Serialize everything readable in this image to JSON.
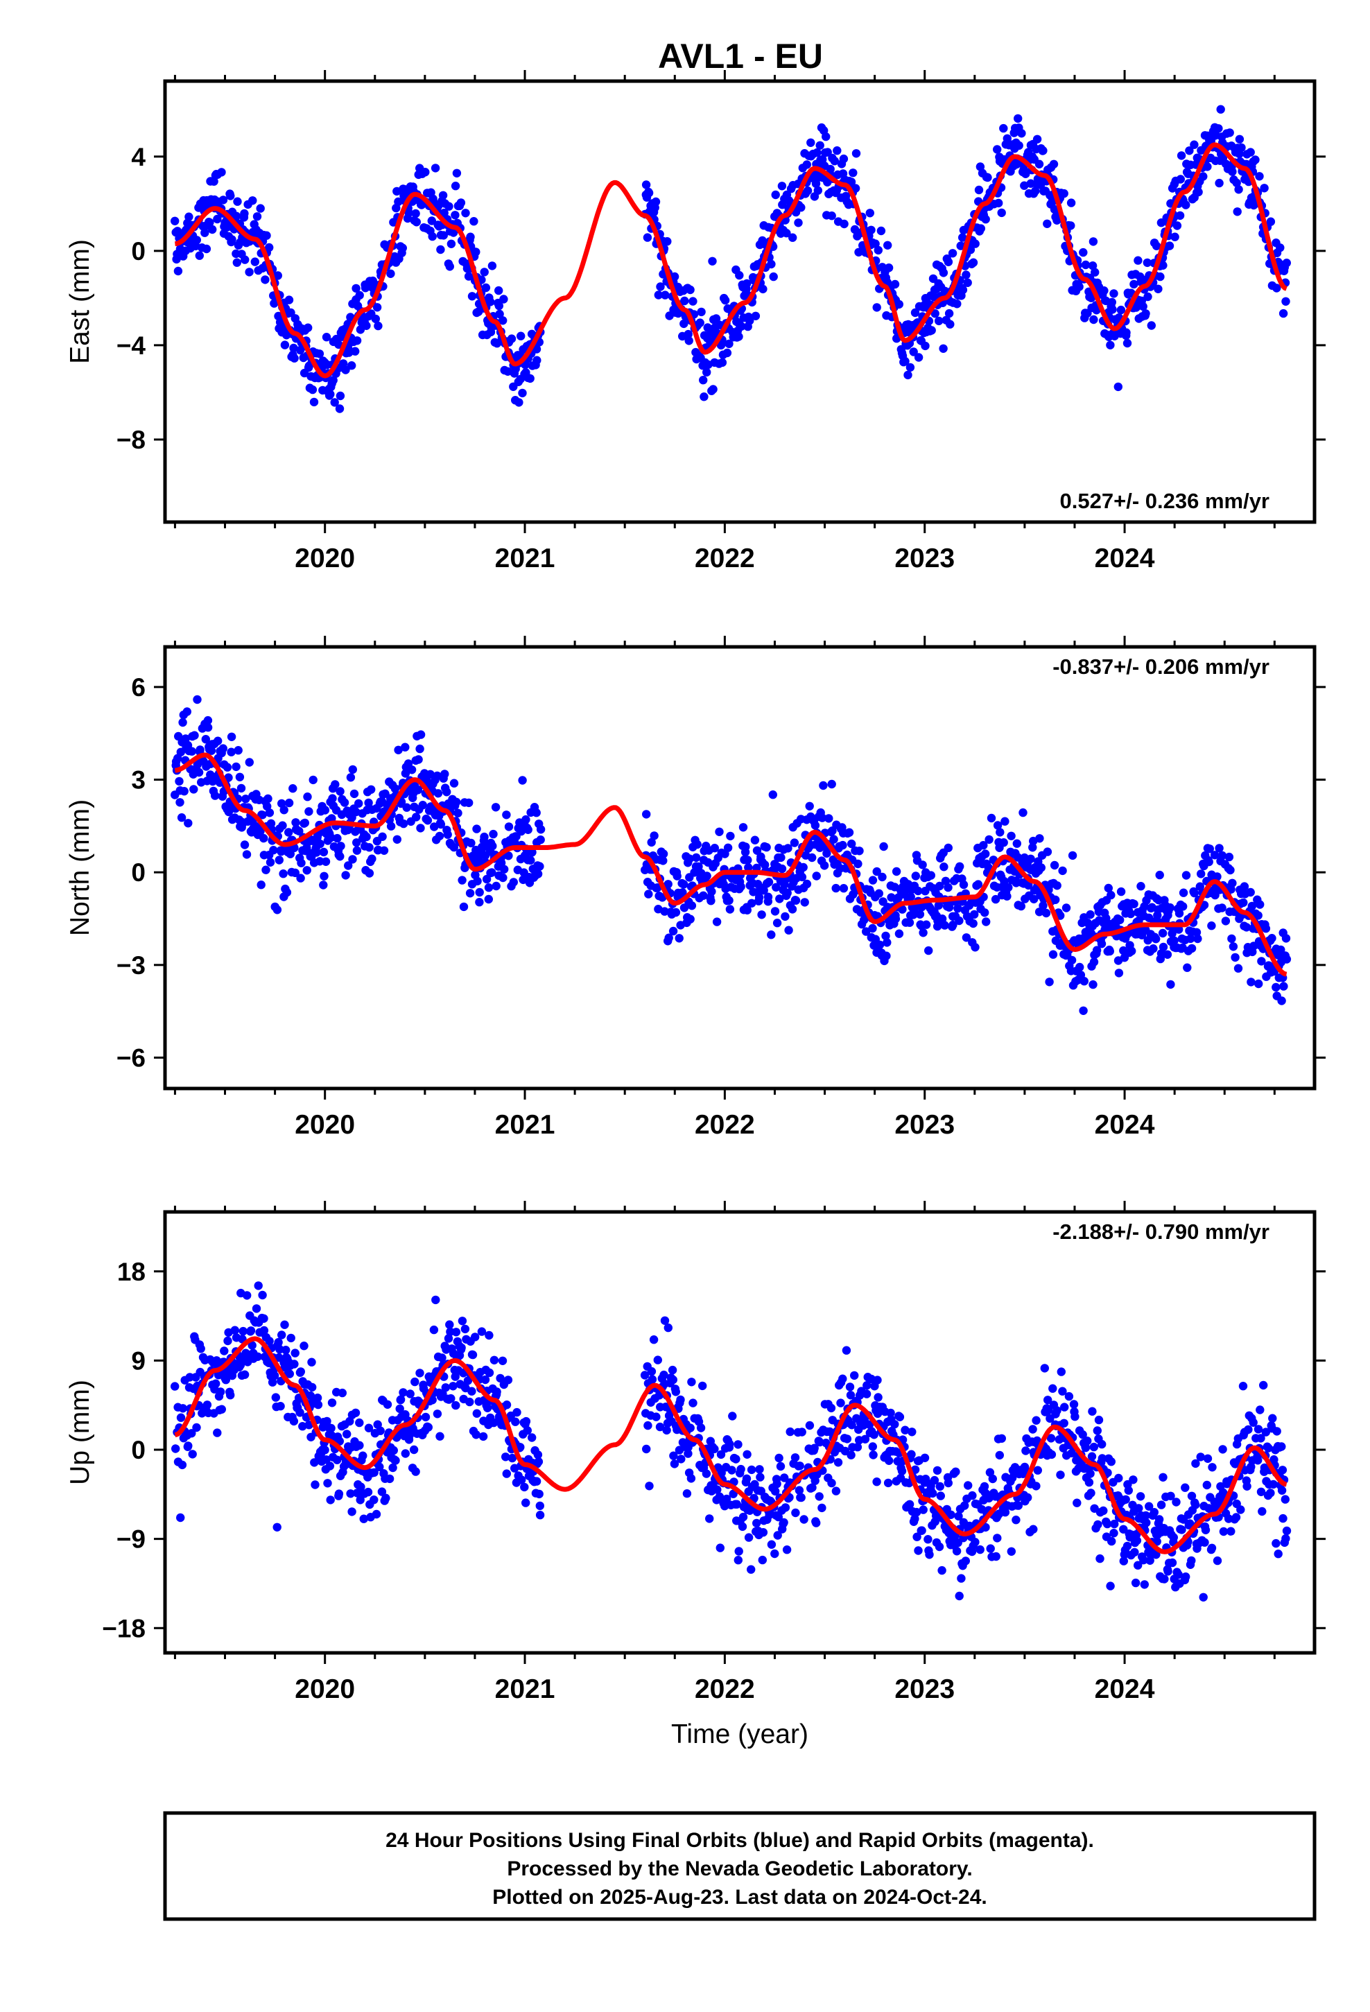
{
  "title": "AVL1 - EU",
  "colors": {
    "points": "#0000ff",
    "fit": "#ff0000",
    "frame": "#000000"
  },
  "footer": {
    "line1": "24 Hour Positions Using Final Orbits (blue) and Rapid Orbits (magenta).",
    "line2": "Processed by the Nevada Geodetic Laboratory.",
    "line3": "Plotted on 2025-Aug-23. Last data on 2024-Oct-24."
  },
  "chart_data": [
    {
      "type": "scatter",
      "ylabel": "East (mm)",
      "xlabel": "",
      "rate_text": "0.527+/- 0.236 mm/yr",
      "rate_position": "bottom-right",
      "xlim": [
        2019.2,
        2024.95
      ],
      "ylim": [
        -11.5,
        7.2
      ],
      "xticks": [
        2020,
        2021,
        2022,
        2023,
        2024
      ],
      "yticks": [
        4,
        0,
        -4,
        -8
      ],
      "data_span": [
        2019.25,
        2024.81
      ],
      "gap": [
        2021.08,
        2021.6
      ],
      "trend_mm_per_yr": 0.527,
      "fit_x": [
        2019.25,
        2019.45,
        2019.65,
        2019.85,
        2020.0,
        2020.2,
        2020.45,
        2020.65,
        2020.85,
        2020.95,
        2021.2,
        2021.45,
        2021.6,
        2021.8,
        2021.9,
        2022.1,
        2022.3,
        2022.45,
        2022.6,
        2022.8,
        2022.9,
        2023.1,
        2023.3,
        2023.45,
        2023.6,
        2023.8,
        2023.95,
        2024.1,
        2024.3,
        2024.45,
        2024.6,
        2024.81
      ],
      "fit_y": [
        0.3,
        1.8,
        0.5,
        -3.5,
        -5.3,
        -2.5,
        2.4,
        1.0,
        -3.0,
        -4.8,
        -2.0,
        2.9,
        1.5,
        -2.5,
        -4.3,
        -2.2,
        1.5,
        3.5,
        2.8,
        -1.5,
        -3.8,
        -2.0,
        2.0,
        4.0,
        3.2,
        -1.2,
        -3.3,
        -1.5,
        2.5,
        4.5,
        3.5,
        -1.6
      ],
      "noise_sd": 0.75,
      "samples_per_year": 300,
      "seed": 11
    },
    {
      "type": "scatter",
      "ylabel": "North (mm)",
      "xlabel": "",
      "rate_text": "-0.837+/- 0.206 mm/yr",
      "rate_position": "top-right",
      "xlim": [
        2019.2,
        2024.95
      ],
      "ylim": [
        -7.0,
        7.3
      ],
      "xticks": [
        2020,
        2021,
        2022,
        2023,
        2024
      ],
      "yticks": [
        6,
        3,
        0,
        -3,
        -6
      ],
      "data_span": [
        2019.25,
        2024.81
      ],
      "gap": [
        2021.08,
        2021.6
      ],
      "trend_mm_per_yr": -0.837,
      "fit_x": [
        2019.25,
        2019.4,
        2019.6,
        2019.8,
        2020.05,
        2020.25,
        2020.45,
        2020.6,
        2020.75,
        2020.95,
        2021.1,
        2021.25,
        2021.45,
        2021.6,
        2021.75,
        2021.9,
        2022.0,
        2022.15,
        2022.3,
        2022.45,
        2022.6,
        2022.75,
        2022.9,
        2023.05,
        2023.25,
        2023.4,
        2023.55,
        2023.75,
        2023.9,
        2024.1,
        2024.3,
        2024.45,
        2024.6,
        2024.81
      ],
      "fit_y": [
        3.3,
        3.8,
        2.0,
        0.9,
        1.6,
        1.5,
        3.0,
        2.0,
        0.1,
        0.8,
        0.8,
        0.9,
        2.1,
        0.5,
        -1.0,
        -0.4,
        0.0,
        0.0,
        -0.1,
        1.3,
        0.4,
        -1.6,
        -1.0,
        -0.9,
        -0.8,
        0.5,
        -0.3,
        -2.5,
        -2.0,
        -1.7,
        -1.7,
        -0.3,
        -1.3,
        -3.3
      ],
      "noise_sd": 0.75,
      "samples_per_year": 300,
      "seed": 23
    },
    {
      "type": "scatter",
      "ylabel": "Up (mm)",
      "xlabel": "Time (year)",
      "rate_text": "-2.188+/- 0.790 mm/yr",
      "rate_position": "top-right",
      "xlim": [
        2019.2,
        2024.95
      ],
      "ylim": [
        -20.5,
        24.0
      ],
      "xticks": [
        2020,
        2021,
        2022,
        2023,
        2024
      ],
      "yticks": [
        18,
        9,
        0,
        -9,
        -18
      ],
      "data_span": [
        2019.25,
        2024.81
      ],
      "gap": [
        2021.08,
        2021.6
      ],
      "trend_mm_per_yr": -2.188,
      "fit_x": [
        2019.25,
        2019.45,
        2019.65,
        2019.85,
        2020.0,
        2020.2,
        2020.4,
        2020.65,
        2020.85,
        2021.0,
        2021.2,
        2021.45,
        2021.65,
        2021.85,
        2022.0,
        2022.2,
        2022.45,
        2022.65,
        2022.85,
        2023.0,
        2023.2,
        2023.45,
        2023.65,
        2023.85,
        2024.0,
        2024.2,
        2024.45,
        2024.65,
        2024.81
      ],
      "fit_y": [
        1.5,
        8.0,
        11.2,
        6.5,
        1.0,
        -1.8,
        2.5,
        9.0,
        5.0,
        -1.5,
        -4.0,
        0.5,
        6.5,
        1.0,
        -3.5,
        -6.0,
        -2.0,
        4.5,
        1.0,
        -5.0,
        -8.5,
        -4.5,
        2.3,
        -1.5,
        -7.0,
        -10.3,
        -6.5,
        0.2,
        -3.5
      ],
      "noise_sd": 2.6,
      "samples_per_year": 300,
      "seed": 37
    }
  ]
}
